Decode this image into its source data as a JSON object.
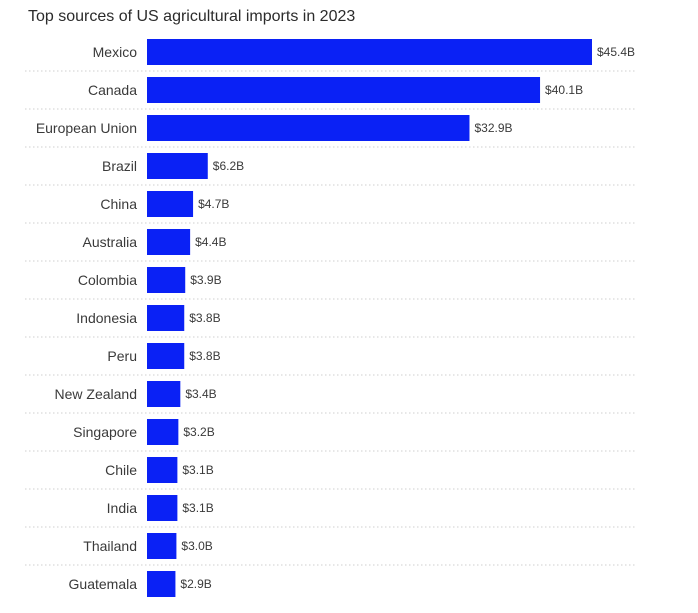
{
  "chart_data": {
    "type": "bar",
    "orientation": "horizontal",
    "title": "Top sources of US agricultural imports in 2023",
    "categories": [
      "Mexico",
      "Canada",
      "European Union",
      "Brazil",
      "China",
      "Australia",
      "Colombia",
      "Indonesia",
      "Peru",
      "New Zealand",
      "Singapore",
      "Chile",
      "India",
      "Thailand",
      "Guatemala"
    ],
    "values": [
      45.4,
      40.1,
      32.9,
      6.2,
      4.7,
      4.4,
      3.9,
      3.8,
      3.8,
      3.4,
      3.2,
      3.1,
      3.1,
      3.0,
      2.9
    ],
    "value_labels": [
      "$45.4B",
      "$40.1B",
      "$32.9B",
      "$6.2B",
      "$4.7B",
      "$4.4B",
      "$3.9B",
      "$3.8B",
      "$3.8B",
      "$3.4B",
      "$3.2B",
      "$3.1B",
      "$3.1B",
      "$3.0B",
      "$2.9B"
    ],
    "xlim": [
      0,
      45.4
    ],
    "grid": false,
    "bar_color": "#0a21f5"
  }
}
